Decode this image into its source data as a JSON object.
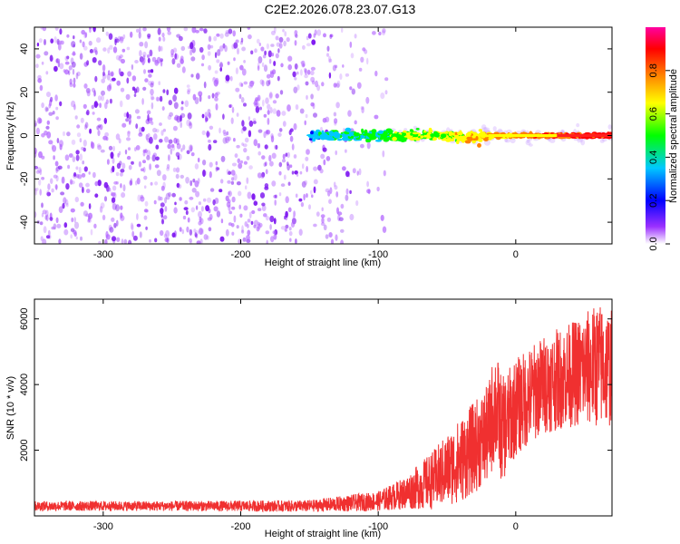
{
  "figure": {
    "title": "C2E2.2026.078.23.07.G13"
  },
  "chart_data": [
    {
      "type": "heatmap",
      "name": "spectrogram",
      "xlabel": "Height of straight line (km)",
      "ylabel": "Frequency (Hz)",
      "xlim": [
        -350,
        70
      ],
      "ylim": [
        -50,
        50
      ],
      "xticks": [
        -300,
        -200,
        -100,
        0
      ],
      "yticks": [
        -40,
        -20,
        0,
        20,
        40
      ],
      "colorbar": {
        "label": "Normalized spectral amplitude",
        "range": [
          0,
          1
        ],
        "ticks": [
          0,
          0.2,
          0.4,
          0.6,
          0.8
        ],
        "colors": [
          "#ffffff",
          "#9b30ff",
          "#0000ff",
          "#00c8ff",
          "#00ff00",
          "#ffff00",
          "#ff8000",
          "#ff0000",
          "#ff00a0"
        ]
      },
      "features": [
        {
          "description": "noise",
          "x_range": [
            -350,
            -90
          ],
          "y_range": [
            -50,
            50
          ],
          "amplitude": 0.1
        },
        {
          "description": "signal",
          "x_range": [
            -150,
            70
          ],
          "y_center": 0,
          "width_hz": 5,
          "amplitude": 0.9
        }
      ]
    },
    {
      "type": "line",
      "name": "snr",
      "xlabel": "Height of straight line (km)",
      "ylabel": "SNR (10 * v/v)",
      "xlim": [
        -350,
        70
      ],
      "ylim": [
        0,
        6600
      ],
      "xticks": [
        -300,
        -200,
        -100,
        0
      ],
      "yticks": [
        2000,
        4000,
        6000
      ],
      "color": "#f03030",
      "envelope": {
        "x": [
          -350,
          -250,
          -150,
          -100,
          -80,
          -60,
          -40,
          -20,
          -15,
          -10,
          0,
          20,
          40,
          60,
          70
        ],
        "mid": [
          300,
          300,
          300,
          450,
          700,
          1100,
          1700,
          2500,
          3400,
          2600,
          3300,
          4000,
          4300,
          4600,
          4500
        ],
        "amp": [
          150,
          150,
          180,
          300,
          500,
          900,
          1300,
          1500,
          1800,
          1600,
          1500,
          1500,
          1600,
          1900,
          1800
        ]
      }
    }
  ]
}
